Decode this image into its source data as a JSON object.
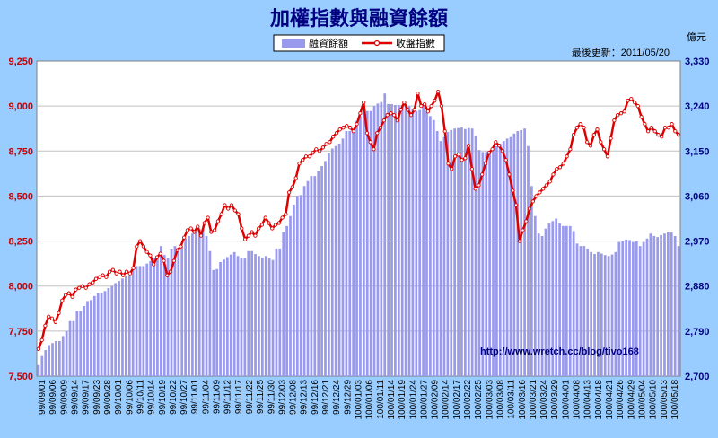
{
  "title": "加權指數與融資餘額",
  "updated": "最後更新：2011/05/20",
  "right_unit": "億元",
  "url": "http://www.wretch.cc/blog/tivo168",
  "colors": {
    "bar": "#9999ee",
    "line": "#dd0000",
    "bg": "#99ccff",
    "plot": "#ffffff"
  },
  "chart_data": {
    "type": "bar+line",
    "legend": [
      {
        "name": "融資餘額",
        "type": "bar"
      },
      {
        "name": "收盤指數",
        "type": "line"
      }
    ],
    "left_axis": {
      "ylim": [
        7500,
        9250
      ],
      "ticks": [
        "7,500",
        "7,750",
        "8,000",
        "8,250",
        "8,500",
        "8,750",
        "9,000",
        "9,250"
      ]
    },
    "right_axis": {
      "ylim": [
        2700,
        3330
      ],
      "ticks": [
        "2,700",
        "2,790",
        "2,880",
        "2,970",
        "3,060",
        "3,150",
        "3,240",
        "3,330"
      ]
    },
    "x_tick_labels": [
      "99/09/01",
      "99/09/06",
      "99/09/09",
      "99/09/14",
      "99/09/17",
      "99/09/23",
      "99/09/28",
      "99/10/01",
      "99/10/06",
      "99/10/11",
      "99/10/14",
      "99/10/19",
      "99/10/22",
      "99/10/27",
      "99/11/01",
      "99/11/04",
      "99/11/09",
      "99/11/12",
      "99/11/17",
      "99/11/22",
      "99/11/25",
      "99/11/30",
      "99/12/03",
      "99/12/08",
      "99/12/13",
      "99/12/16",
      "99/12/21",
      "99/12/24",
      "99/12/29",
      "100/01/03",
      "100/01/06",
      "100/01/11",
      "100/01/14",
      "100/01/19",
      "100/01/24",
      "100/01/27",
      "100/02/09",
      "100/02/14",
      "100/02/17",
      "100/02/22",
      "100/02/25",
      "100/03/03",
      "100/03/08",
      "100/03/11",
      "100/03/16",
      "100/03/21",
      "100/03/24",
      "100/03/29",
      "100/04/01",
      "100/04/08",
      "100/04/13",
      "100/04/18",
      "100/04/21",
      "100/04/26",
      "100/04/29",
      "100/05/04",
      "100/05/10",
      "100/05/13",
      "100/05/18"
    ],
    "financing_balance": [
      2722,
      2740,
      2752,
      2762,
      2766,
      2770,
      2770,
      2780,
      2790,
      2810,
      2810,
      2830,
      2830,
      2840,
      2850,
      2852,
      2860,
      2866,
      2866,
      2870,
      2876,
      2880,
      2886,
      2890,
      2895,
      2900,
      2900,
      2915,
      2920,
      2920,
      2920,
      2925,
      2930,
      2935,
      2935,
      2960,
      2942,
      2935,
      2955,
      2960,
      2955,
      2960,
      2975,
      2980,
      2985,
      2988,
      2993,
      2995,
      2980,
      2950,
      2912,
      2914,
      2928,
      2933,
      2938,
      2943,
      2948,
      2940,
      2935,
      2935,
      2950,
      2950,
      2944,
      2940,
      2937,
      2940,
      2935,
      2932,
      2955,
      2955,
      2988,
      3000,
      3020,
      3043,
      3060,
      3062,
      3080,
      3090,
      3100,
      3100,
      3110,
      3120,
      3130,
      3145,
      3155,
      3160,
      3165,
      3175,
      3190,
      3190,
      3195,
      3210,
      3220,
      3225,
      3230,
      3230,
      3240,
      3245,
      3248,
      3265,
      3244,
      3244,
      3242,
      3242,
      3242,
      3240,
      3240,
      3235,
      3230,
      3232,
      3240,
      3230,
      3220,
      3212,
      3190,
      3170,
      3178,
      3188,
      3192,
      3195,
      3196,
      3197,
      3194,
      3196,
      3195,
      3180,
      3152,
      3148,
      3148,
      3146,
      3155,
      3160,
      3165,
      3170,
      3175,
      3178,
      3185,
      3190,
      3192,
      3195,
      3160,
      3080,
      3020,
      2985,
      2980,
      2995,
      3005,
      3010,
      3015,
      3005,
      3000,
      3000,
      3000,
      2990,
      2965,
      2960,
      2960,
      2955,
      2948,
      2944,
      2948,
      2945,
      2942,
      2940,
      2943,
      2948,
      2968,
      2970,
      2973,
      2972,
      2968,
      2970,
      2960,
      2968,
      2975,
      2985,
      2980,
      2978,
      2982,
      2985,
      2988,
      2987,
      2980,
      2960
    ],
    "close_index": [
      7650,
      7700,
      7780,
      7830,
      7820,
      7800,
      7850,
      7920,
      7950,
      7960,
      7940,
      7980,
      7990,
      8000,
      7990,
      8010,
      8020,
      8040,
      8050,
      8060,
      8050,
      8080,
      8090,
      8070,
      8080,
      8060,
      8080,
      8070,
      8100,
      8220,
      8250,
      8220,
      8190,
      8170,
      8120,
      8160,
      8180,
      8140,
      8060,
      8080,
      8140,
      8200,
      8220,
      8270,
      8310,
      8320,
      8300,
      8330,
      8280,
      8350,
      8380,
      8300,
      8310,
      8360,
      8400,
      8450,
      8430,
      8450,
      8420,
      8400,
      8320,
      8260,
      8280,
      8300,
      8280,
      8320,
      8340,
      8380,
      8350,
      8320,
      8340,
      8350,
      8380,
      8400,
      8520,
      8550,
      8600,
      8680,
      8700,
      8720,
      8720,
      8740,
      8760,
      8750,
      8770,
      8790,
      8800,
      8830,
      8850,
      8870,
      8880,
      8890,
      8880,
      8860,
      8900,
      8960,
      9020,
      8850,
      8800,
      8760,
      8850,
      8880,
      8920,
      8950,
      8960,
      8950,
      8920,
      8980,
      9020,
      8980,
      8950,
      8980,
      9070,
      9000,
      9010,
      8970,
      9000,
      9030,
      9080,
      9000,
      8860,
      8680,
      8650,
      8720,
      8730,
      8700,
      8710,
      8780,
      8650,
      8540,
      8560,
      8620,
      8680,
      8740,
      8760,
      8800,
      8780,
      8750,
      8700,
      8620,
      8530,
      8450,
      8250,
      8310,
      8360,
      8430,
      8470,
      8500,
      8520,
      8540,
      8560,
      8580,
      8620,
      8650,
      8660,
      8680,
      8720,
      8760,
      8840,
      8880,
      8900,
      8880,
      8800,
      8780,
      8840,
      8870,
      8800,
      8760,
      8720,
      8820,
      8920,
      8950,
      8960,
      8970,
      9030,
      9040,
      9020,
      9000,
      8940,
      8900,
      8860,
      8880,
      8860,
      8840,
      8830,
      8880,
      8880,
      8900,
      8860,
      8840
    ]
  }
}
